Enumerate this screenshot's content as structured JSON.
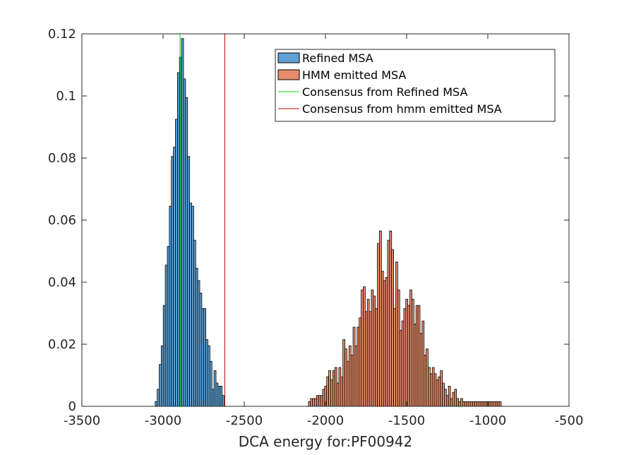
{
  "chart_data": {
    "type": "bar",
    "title": "",
    "xlabel": "DCA energy for:PF00942",
    "ylabel": "",
    "xlim": [
      -3500,
      -500
    ],
    "ylim": [
      0,
      0.12
    ],
    "xticks": [
      -3500,
      -3000,
      -2500,
      -2000,
      -1500,
      -1000,
      -500
    ],
    "yticks": [
      0,
      0.02,
      0.04,
      0.06,
      0.08,
      0.1,
      0.12
    ],
    "xtick_labels": [
      "-3500",
      "-3000",
      "-2500",
      "-2000",
      "-1500",
      "-1000",
      "-500"
    ],
    "ytick_labels": [
      "0",
      "0.02",
      "0.04",
      "0.06",
      "0.08",
      "0.1",
      "0.12"
    ],
    "grid": false,
    "legend_position": "top-right",
    "series": [
      {
        "name": "Refined MSA",
        "color": "#5FA2D5",
        "bin_width": 12.5,
        "bin_left_edges": [
          -3049,
          -3036.5,
          -3024,
          -3011.5,
          -2999,
          -2986.5,
          -2974,
          -2961.5,
          -2949,
          -2936.5,
          -2924,
          -2911.5,
          -2899,
          -2886.5,
          -2874,
          -2861.5,
          -2849,
          -2836.5,
          -2824,
          -2811.5,
          -2799,
          -2786.5,
          -2774,
          -2761.5,
          -2749,
          -2736.5,
          -2724,
          -2711.5,
          -2699,
          -2686.5,
          -2674,
          -2661.5,
          -2649,
          -2636.5
        ],
        "values": [
          0.0015,
          0.0055,
          0.0135,
          0.0195,
          0.0325,
          0.0455,
          0.0515,
          0.0645,
          0.0805,
          0.0835,
          0.0925,
          0.1075,
          0.1125,
          0.1185,
          0.1055,
          0.0995,
          0.0805,
          0.0655,
          0.0645,
          0.0535,
          0.0445,
          0.0405,
          0.0365,
          0.0315,
          0.0315,
          0.0215,
          0.0195,
          0.0145,
          0.0055,
          0.0115,
          0.0075,
          0.0065,
          0.0065,
          0.0035
        ]
      },
      {
        "name": "HMM emitted MSA",
        "color": "#E68C6A",
        "bin_width": 12.5,
        "bin_left_edges": [
          -2105,
          -2092.5,
          -2080,
          -2067.5,
          -2055,
          -2042.5,
          -2030,
          -2017.5,
          -2005,
          -1992.5,
          -1980,
          -1967.5,
          -1955,
          -1942.5,
          -1930,
          -1917.5,
          -1905,
          -1892.5,
          -1880,
          -1867.5,
          -1855,
          -1842.5,
          -1830,
          -1817.5,
          -1805,
          -1792.5,
          -1780,
          -1767.5,
          -1755,
          -1742.5,
          -1730,
          -1717.5,
          -1705,
          -1692.5,
          -1680,
          -1667.5,
          -1655,
          -1642.5,
          -1630,
          -1617.5,
          -1605,
          -1592.5,
          -1580,
          -1567.5,
          -1555,
          -1542.5,
          -1530,
          -1517.5,
          -1505,
          -1492.5,
          -1480,
          -1467.5,
          -1455,
          -1442.5,
          -1430,
          -1417.5,
          -1405,
          -1392.5,
          -1380,
          -1367.5,
          -1355,
          -1342.5,
          -1330,
          -1317.5,
          -1305,
          -1292.5,
          -1280,
          -1267.5,
          -1255,
          -1242.5,
          -1230,
          -1217.5,
          -1205,
          -1192.5,
          -1180,
          -1167.5,
          -1155,
          -1142.5,
          -1130,
          -1117.5,
          -1105,
          -1092.5,
          -1080,
          -1067.5,
          -1055,
          -1042.5,
          -1030,
          -1017.5,
          -1005,
          -992.5,
          -980,
          -967.5,
          -955,
          -942.5,
          -930
        ],
        "values": [
          0.0015,
          0.0025,
          0.0025,
          0.0025,
          0.0035,
          0.0035,
          0.0035,
          0.0055,
          0.0065,
          0.0095,
          0.0115,
          0.0085,
          0.0115,
          0.0125,
          0.0075,
          0.0125,
          0.0095,
          0.0215,
          0.0185,
          0.0145,
          0.0195,
          0.0165,
          0.0255,
          0.0195,
          0.0255,
          0.0285,
          0.0375,
          0.0385,
          0.0305,
          0.0345,
          0.0305,
          0.0375,
          0.0355,
          0.0315,
          0.0525,
          0.0565,
          0.0435,
          0.0405,
          0.0415,
          0.0535,
          0.0565,
          0.0505,
          0.0315,
          0.0465,
          0.0375,
          0.0245,
          0.0275,
          0.0315,
          0.0345,
          0.0325,
          0.0375,
          0.0345,
          0.0265,
          0.0325,
          0.0325,
          0.0235,
          0.0275,
          0.0165,
          0.0185,
          0.0125,
          0.0105,
          0.0125,
          0.0105,
          0.0085,
          0.0095,
          0.0115,
          0.0075,
          0.0055,
          0.0035,
          0.0065,
          0.0025,
          0.0045,
          0.0055,
          0.0025,
          0.0015,
          0.0025,
          0.0015,
          0.0015,
          0.0015,
          0.0015,
          0.0015,
          0.0015,
          0.0015,
          0.0015,
          0.0015,
          0.0015,
          0.0015,
          0.0015,
          0.0015,
          0.0015,
          0.0015,
          0.0015,
          0.0015,
          0.0015,
          0.0015
        ]
      }
    ],
    "vertical_lines": [
      {
        "name": "Consensus from Refined MSA",
        "x": -2895,
        "color": "#00D000"
      },
      {
        "name": "Consensus from hmm emitted MSA",
        "x": -2620,
        "color": "#C00000"
      }
    ],
    "legend": [
      {
        "label": "Refined MSA",
        "kind": "patch",
        "color": "#5FA2D5"
      },
      {
        "label": "HMM emitted MSA",
        "kind": "patch",
        "color": "#E68C6A"
      },
      {
        "label": "Consensus from Refined MSA",
        "kind": "line",
        "color": "#00D000"
      },
      {
        "label": "Consensus from hmm emitted MSA",
        "kind": "line",
        "color": "#C00000"
      }
    ]
  }
}
